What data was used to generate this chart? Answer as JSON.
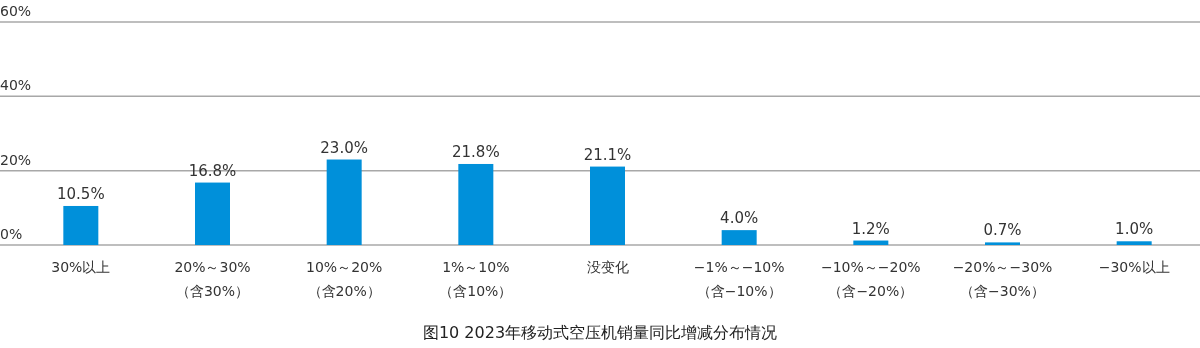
{
  "chart_data": {
    "type": "bar",
    "title": "图10 2023年移动式空压机销量同比增减分布情况",
    "categories": [
      "30%以上",
      "20%～30%\n（含30%）",
      "10%～20%\n（含20%）",
      "1%～10%\n（含10%）",
      "没变化",
      "−1%～−10%\n（含−10%）",
      "−10%～−20%\n（含−20%）",
      "−20%～−30%\n（含−30%）",
      "−30%以上"
    ],
    "values": [
      10.5,
      16.8,
      23.0,
      21.8,
      21.1,
      4.0,
      1.2,
      0.7,
      1.0
    ],
    "value_labels": [
      "10.5%",
      "16.8%",
      "23.0%",
      "21.8%",
      "21.1%",
      "4.0%",
      "1.2%",
      "0.7%",
      "1.0%"
    ],
    "color": "#0090da",
    "ylim": [
      0,
      60
    ],
    "yticks": [
      {
        "value": 0,
        "label": "0%"
      },
      {
        "value": 20,
        "label": "20%"
      },
      {
        "value": 40,
        "label": "40%"
      },
      {
        "value": 60,
        "label": "60%"
      }
    ],
    "grid": "y"
  }
}
